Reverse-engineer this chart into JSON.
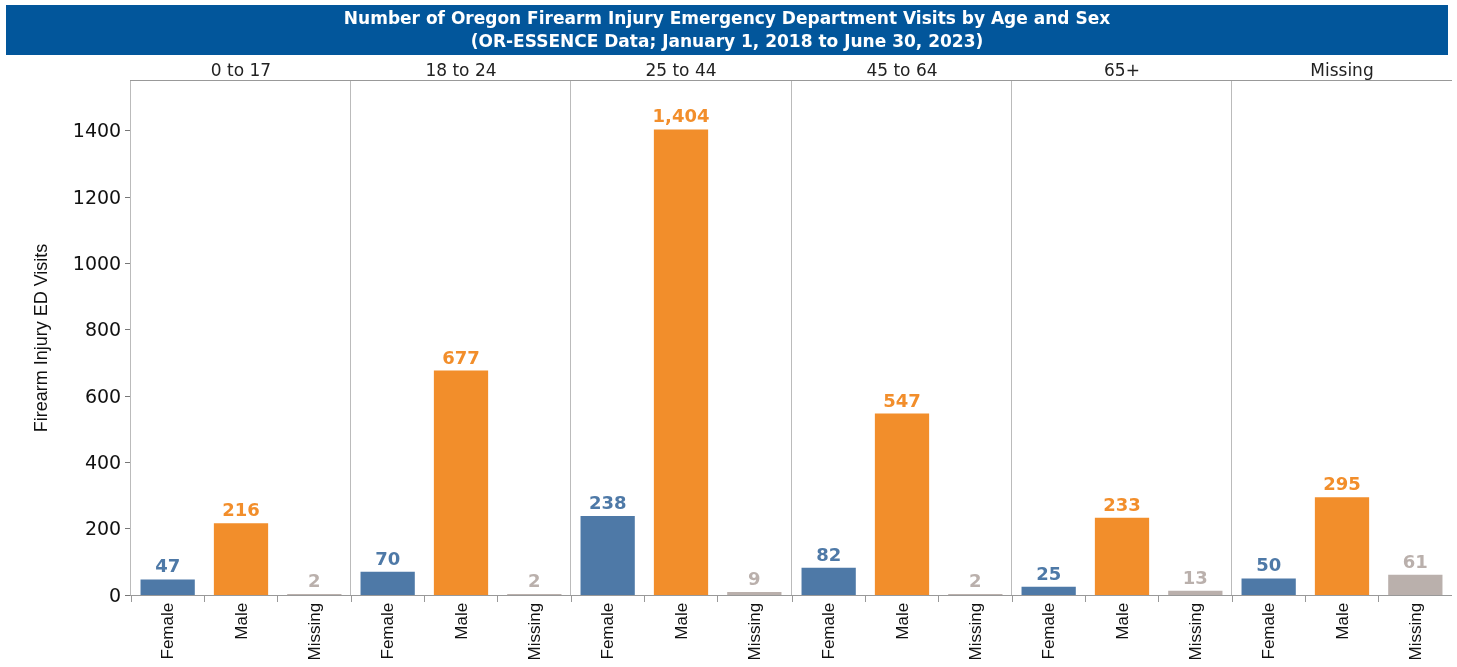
{
  "chart_data": [
    {
      "type": "other",
      "title": "Number of Oregon Firearm Injury Emergency Department Visits by Age and Sex",
      "subtitle": "(OR-ESSENCE Data; January 1, 2018 to June 30, 2023)"
    },
    {
      "type": "bar",
      "title": "0 to 17",
      "ylabel": "Firearm Injury ED Visits",
      "categories": [
        "Female",
        "Male",
        "Missing"
      ],
      "values": [
        47,
        216,
        2
      ],
      "value_labels": [
        "47",
        "216",
        "2"
      ],
      "colors": [
        "#4e79a7",
        "#f28e2b",
        "#bab0ac"
      ],
      "ylim": [
        0,
        1550
      ],
      "yticks": [
        0,
        200,
        400,
        600,
        800,
        1000,
        1200,
        1400
      ]
    },
    {
      "type": "bar",
      "title": "18 to 24",
      "categories": [
        "Female",
        "Male",
        "Missing"
      ],
      "values": [
        70,
        677,
        2
      ],
      "value_labels": [
        "70",
        "677",
        "2"
      ],
      "colors": [
        "#4e79a7",
        "#f28e2b",
        "#bab0ac"
      ],
      "ylim": [
        0,
        1550
      ],
      "yticks": [
        0,
        200,
        400,
        600,
        800,
        1000,
        1200,
        1400
      ],
      "tick_labels": "x"
    },
    {
      "type": "bar",
      "title": "25 to 44",
      "categories": [
        "Female",
        "Male",
        "Missing"
      ],
      "values": [
        238,
        1404,
        9
      ],
      "value_labels": [
        "238",
        "1,404",
        "9"
      ],
      "colors": [
        "#4e79a7",
        "#f28e2b",
        "#bab0ac"
      ],
      "ylim": [
        0,
        1550
      ],
      "yticks": [
        0,
        200,
        400,
        600,
        800,
        1000,
        1200,
        1400
      ],
      "tick_labels": "x"
    },
    {
      "type": "bar",
      "title": "45 to 64",
      "categories": [
        "Female",
        "Male",
        "Missing"
      ],
      "values": [
        82,
        547,
        2
      ],
      "value_labels": [
        "82",
        "547",
        "2"
      ],
      "colors": [
        "#4e79a7",
        "#f28e2b",
        "#bab0ac"
      ],
      "ylim": [
        0,
        1550
      ],
      "yticks": [
        0,
        200,
        400,
        600,
        800,
        1000,
        1200,
        1400
      ],
      "tick_labels": "x"
    },
    {
      "type": "bar",
      "title": "65+",
      "categories": [
        "Female",
        "Male",
        "Missing"
      ],
      "values": [
        25,
        233,
        13
      ],
      "value_labels": [
        "25",
        "233",
        "13"
      ],
      "colors": [
        "#4e79a7",
        "#f28e2b",
        "#bab0ac"
      ],
      "ylim": [
        0,
        1550
      ],
      "yticks": [
        0,
        200,
        400,
        600,
        800,
        1000,
        1200,
        1400
      ],
      "tick_labels": "x"
    },
    {
      "type": "bar",
      "title": "Missing",
      "categories": [
        "Female",
        "Male",
        "Missing"
      ],
      "values": [
        50,
        295,
        61
      ],
      "value_labels": [
        "50",
        "295",
        "61"
      ],
      "colors": [
        "#4e79a7",
        "#f28e2b",
        "#bab0ac"
      ],
      "ylim": [
        0,
        1550
      ],
      "yticks": [
        0,
        200,
        400,
        600,
        800,
        1000,
        1200,
        1400
      ],
      "tick_labels": "x"
    }
  ]
}
